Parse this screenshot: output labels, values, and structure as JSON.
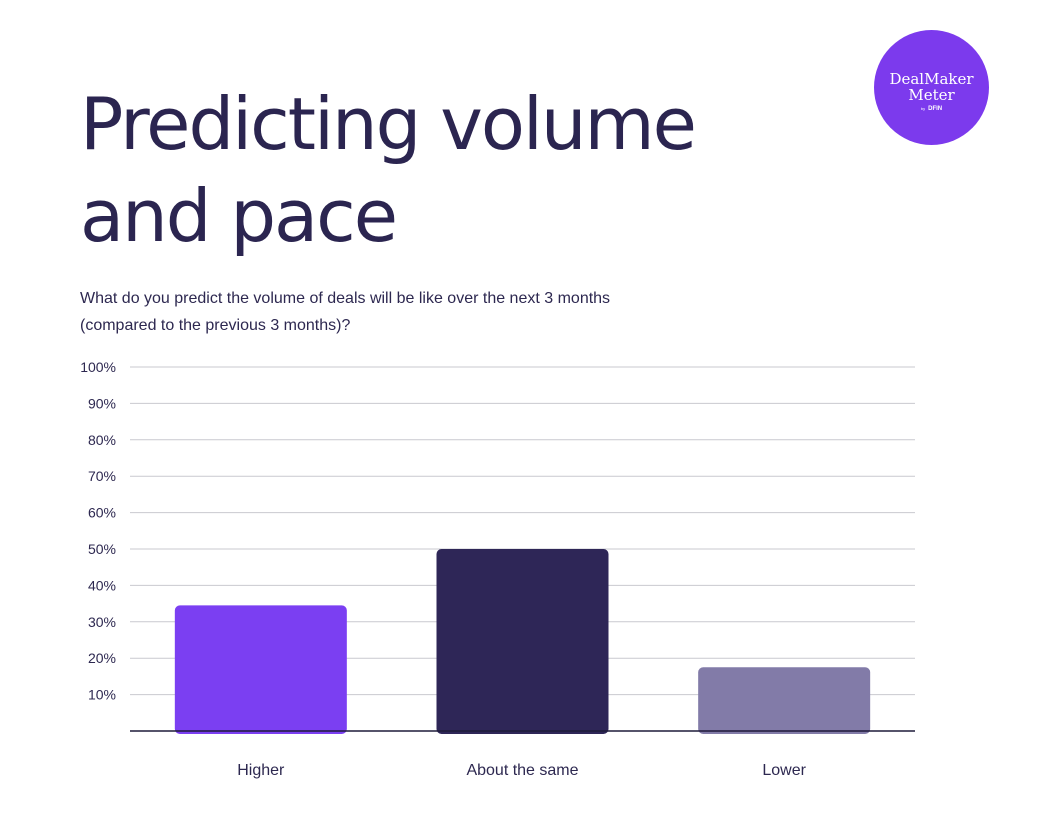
{
  "header": {
    "title_line1": "Predicting volume",
    "title_line2": "and pace",
    "subtitle_line1": "What do you predict the volume of deals will be like over the next 3 months",
    "subtitle_line2": "(compared to the previous 3 months)?"
  },
  "logo": {
    "line1": "DealMaker",
    "line2": "Meter",
    "by": "by",
    "brand": "DFIN",
    "color": "#7c3aed"
  },
  "chart_data": {
    "type": "bar",
    "categories": [
      "Higher",
      "About the same",
      "Lower"
    ],
    "values": [
      34.5,
      50,
      17.5
    ],
    "colors": [
      "#7b3ff2",
      "#2e2657",
      "#827ba8"
    ],
    "ylim": [
      0,
      100
    ],
    "yticks": [
      10,
      20,
      30,
      40,
      50,
      60,
      70,
      80,
      90,
      100
    ],
    "ytick_labels": [
      "10%",
      "20%",
      "30%",
      "40%",
      "50%",
      "60%",
      "70%",
      "80%",
      "90%",
      "100%"
    ],
    "grid": true,
    "legend": "none"
  }
}
